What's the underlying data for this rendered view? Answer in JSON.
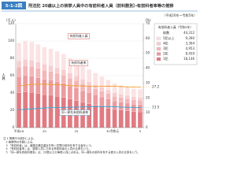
{
  "chart_data": {
    "type": "bar",
    "figure_label": "5-1-2図",
    "title": "刑法犯 20歳以上の検挙人員中の有前科者人員（前科数別）・有前科者率等の推移",
    "subtitle": "（平成16年～令和5年）",
    "y_unit": "(千人)",
    "y_label": "人員",
    "y2_unit": "(%)",
    "categories": [
      "平成16",
      null,
      null,
      null,
      "20",
      null,
      null,
      null,
      null,
      "25",
      null,
      null,
      null,
      null,
      "30",
      "令和元",
      null,
      null,
      null,
      "5"
    ],
    "ylim": [
      0,
      120
    ],
    "yticks": [
      0,
      20,
      40,
      60,
      80,
      100,
      120
    ],
    "y2lim": [
      0,
      70
    ],
    "y2ticks": [
      0,
      10,
      20,
      30,
      40,
      50,
      60,
      70
    ],
    "legend_title": "有前科者人員（令和5年）",
    "total": {
      "name": "総数",
      "value": 44.312,
      "label": "44,312"
    },
    "series": [
      {
        "name": "1犯",
        "color": "#e27a82",
        "values": [
          40.2,
          41.0,
          40.6,
          39.4,
          38.1,
          37.3,
          36.1,
          34.9,
          32.8,
          31.2,
          29.1,
          27.5,
          25.8,
          24.2,
          22.6,
          20.9,
          20.1,
          19.3,
          18.5,
          18.146
        ],
        "latest_label": "18,146"
      },
      {
        "name": "2犯",
        "color": "#ec9ba0",
        "values": [
          18.6,
          19.0,
          18.8,
          18.2,
          17.7,
          17.3,
          16.7,
          16.2,
          15.2,
          14.4,
          13.5,
          12.7,
          12.0,
          11.2,
          10.5,
          9.7,
          9.3,
          8.9,
          8.6,
          8.459
        ],
        "latest_label": "8,459"
      },
      {
        "name": "3犯",
        "color": "#f3b6b9",
        "values": [
          11.0,
          11.2,
          11.1,
          10.8,
          10.4,
          10.2,
          9.9,
          9.5,
          9.0,
          8.5,
          8.0,
          7.5,
          7.1,
          6.6,
          6.2,
          5.7,
          5.5,
          5.3,
          5.0,
          4.953
        ],
        "latest_label": "4,953"
      },
      {
        "name": "4犯",
        "color": "#f7cdd0",
        "values": [
          7.4,
          7.6,
          7.5,
          7.3,
          7.1,
          6.9,
          6.7,
          6.5,
          6.1,
          5.8,
          5.4,
          5.1,
          4.8,
          4.5,
          4.2,
          3.9,
          3.7,
          3.6,
          3.4,
          3.364
        ],
        "latest_label": "3,364"
      },
      {
        "name": "5犯以上",
        "color": "#fbe3e4",
        "values": [
          20.8,
          21.2,
          21.0,
          20.3,
          19.7,
          19.3,
          18.6,
          17.9,
          16.9,
          16.1,
          15.0,
          14.2,
          13.3,
          12.5,
          11.5,
          10.8,
          10.4,
          9.9,
          9.5,
          9.39
        ],
        "latest_label": "9,390"
      },
      {
        "name": "有前科者率",
        "type": "line",
        "axis": "y2",
        "color": "#f0a030",
        "values": [
          28.0,
          28.6,
          29.0,
          29.2,
          29.3,
          29.0,
          28.9,
          28.6,
          28.3,
          28.1,
          28.0,
          27.9,
          27.7,
          27.8,
          27.9,
          27.8,
          27.6,
          27.4,
          27.3,
          27.2
        ]
      },
      {
        "name": "同一罪名有前科者率",
        "type": "line",
        "axis": "y2",
        "color": "#3aa8d8",
        "values": [
          12.0,
          12.3,
          12.6,
          12.9,
          13.2,
          13.4,
          13.5,
          13.6,
          13.7,
          13.8,
          13.9,
          14.0,
          14.1,
          14.2,
          14.1,
          14.0,
          13.8,
          13.7,
          13.6,
          13.5
        ]
      }
    ],
    "bar_annotation": "有前科者人員",
    "notes": [
      "注 1 警察庁の統計による。",
      "2 検挙時の年齢による。",
      "3 「有前科者」は、道路交通法違反を除く犯罪の前科を有する者をいう。",
      "4 「有前科者率」は、検挙人員に占める有前科者の人員の比率をいう。",
      "5 「同一罪名有前科者率」は、20歳以上の検挙人員に占める、同一罪名の前科を有する者の人員の比率をいう。"
    ]
  }
}
